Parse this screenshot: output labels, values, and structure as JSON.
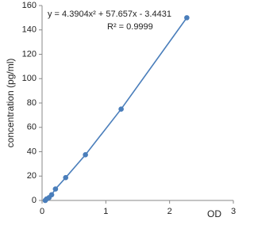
{
  "chart_data": {
    "type": "scatter",
    "x_label": "OD",
    "y_label": "concentration (pg/ml)",
    "annotations": [
      "y = 4.3904x² + 57.657x - 3.4431",
      "R² = 0.9999"
    ],
    "x": [
      0.05,
      0.07,
      0.11,
      0.15,
      0.21,
      0.37,
      0.68,
      1.24,
      2.27
    ],
    "series": [
      {
        "name": "concentration",
        "color": "#4a7ebb",
        "values": [
          0,
          1.17,
          2.34,
          4.69,
          9.38,
          18.75,
          37.5,
          75,
          150
        ]
      }
    ],
    "xlim": [
      0,
      3
    ],
    "xticks": [
      0,
      1,
      2,
      3
    ],
    "ylim": [
      0,
      160
    ],
    "yticks": [
      0,
      20,
      40,
      60,
      80,
      100,
      120,
      140,
      160
    ],
    "grid": false,
    "trendline": true
  }
}
